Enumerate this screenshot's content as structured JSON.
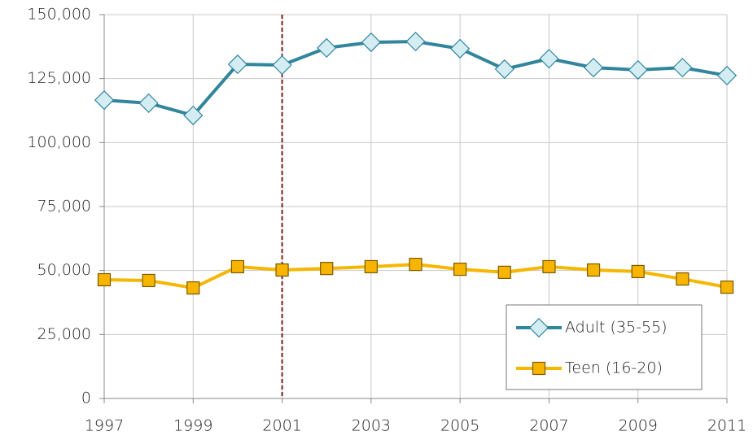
{
  "chart_data": {
    "type": "line",
    "x": [
      1997,
      1998,
      1999,
      2000,
      2001,
      2002,
      2003,
      2004,
      2005,
      2006,
      2007,
      2008,
      2009,
      2010,
      2011
    ],
    "series": [
      {
        "name": "Adult (35-55)",
        "color": "#31859c",
        "marker": "diamond",
        "marker_color": "#d3edf3",
        "values": [
          116600,
          115400,
          110600,
          130600,
          130300,
          137000,
          139200,
          139500,
          136700,
          128700,
          132800,
          129300,
          128400,
          129300,
          126200
        ]
      },
      {
        "name": "Teen (16-20)",
        "color": "#f5b700",
        "marker": "square",
        "marker_color": "#f7b500",
        "values": [
          46400,
          46100,
          43200,
          51500,
          50200,
          50800,
          51500,
          52400,
          50500,
          49300,
          51500,
          50200,
          49600,
          46700,
          43500
        ]
      }
    ],
    "xlim": [
      1997,
      2011
    ],
    "xticks": [
      1997,
      1999,
      2001,
      2003,
      2005,
      2007,
      2009,
      2011
    ],
    "ylim": [
      0,
      150000
    ],
    "yticks": [
      0,
      {
        "value": 25000,
        "label": "25,000"
      },
      {
        "value": 50000,
        "label": "50,000"
      },
      {
        "value": 75000,
        "label": "75,000"
      },
      {
        "value": 100000,
        "label": "100,000"
      },
      {
        "value": 125000,
        "label": "125,000"
      },
      {
        "value": 150000,
        "label": "150,000"
      }
    ],
    "grid": true,
    "legend": "lower right",
    "reference_line": {
      "x": 2001,
      "color": "#7a1c1c",
      "dashed": true
    }
  }
}
